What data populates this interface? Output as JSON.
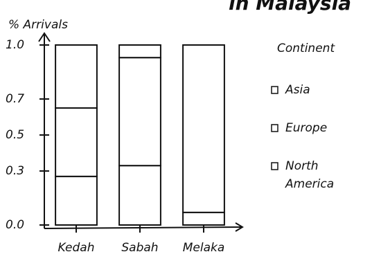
{
  "chart_data": {
    "type": "stacked-bar",
    "title": "in Malaysia",
    "y_label": "% Arrivals",
    "categories": [
      "Kedah",
      "Sabah",
      "Melaka"
    ],
    "legend_title": "Continent",
    "series": [
      {
        "name": "Asia",
        "color": "#ffffff",
        "values": [
          0.27,
          0.33,
          0.07
        ]
      },
      {
        "name": "Europe",
        "color": "#ffffff",
        "values": [
          0.38,
          0.6,
          0.93
        ]
      },
      {
        "name": "North America",
        "color": "#ffffff",
        "values": [
          0.35,
          0.07,
          0
        ]
      }
    ],
    "ylim": [
      0,
      1
    ],
    "yticks": [
      {
        "value": 0,
        "label": "0.0"
      },
      0.3,
      0.5,
      0.7,
      {
        "value": 1,
        "label": "1.0"
      }
    ],
    "legend_position": "right"
  }
}
